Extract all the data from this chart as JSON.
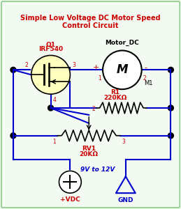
{
  "title": "Simple Low Voltage DC Motor Speed\nControl Circuit",
  "title_color": "#cc0000",
  "bg_color": "#f2faf2",
  "border_color": "#88cc88",
  "wire_color": "#0000cc",
  "label_color": "#cc0000",
  "blue_label_color": "#0000cc",
  "component_color": "#000000",
  "mosfet_label_q": "Q1",
  "mosfet_label_n": "IRF540",
  "motor_label": "Motor_DC",
  "motor_name": "M1",
  "r1_label1": "R1",
  "r1_label2": "220KΩ",
  "rv1_label1": "RV1",
  "rv1_label2": "20KΩ",
  "vdc_label": "+VDC",
  "gnd_label": "GND",
  "voltage_label": "9V to 12V"
}
